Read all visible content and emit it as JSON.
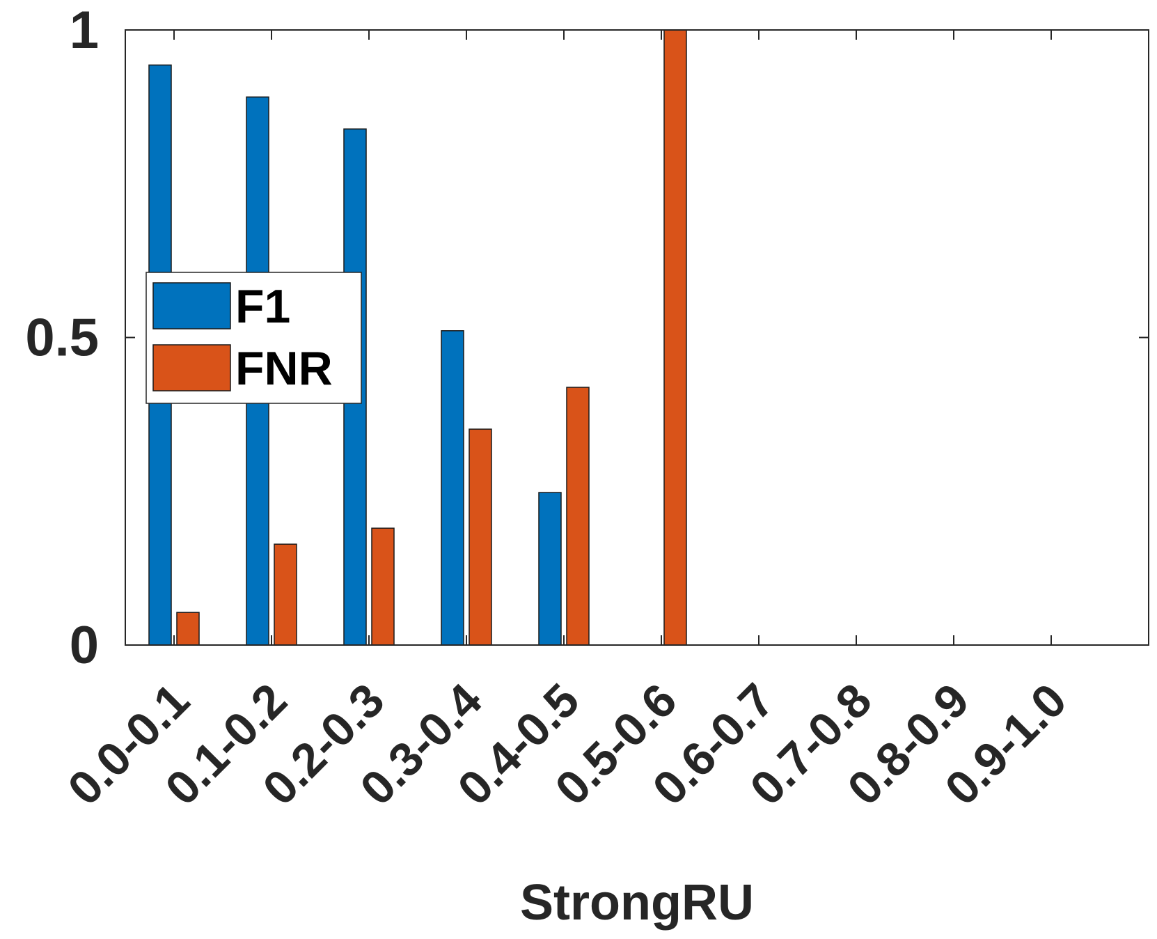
{
  "chart_data": {
    "type": "bar",
    "categories": [
      "0.0-0.1",
      "0.1-0.2",
      "0.2-0.3",
      "0.3-0.4",
      "0.4-0.5",
      "0.5-0.6",
      "0.6-0.7",
      "0.7-0.8",
      "0.8-0.9",
      "0.9-1.0"
    ],
    "series": [
      {
        "name": "F1",
        "color": "#0072BD",
        "values": [
          0.943,
          0.891,
          0.839,
          0.511,
          0.248,
          0,
          0,
          0,
          0,
          0
        ]
      },
      {
        "name": "FNR",
        "color": "#D95319",
        "values": [
          0.053,
          0.164,
          0.19,
          0.351,
          0.419,
          1.0,
          0,
          0,
          0,
          0
        ]
      }
    ],
    "xlabel": "StrongRU",
    "ylabel": "",
    "ylim": [
      0,
      1
    ],
    "yticks": [
      "0",
      "0.5",
      "1"
    ],
    "legend_position": "upper-left",
    "grid": false
  }
}
